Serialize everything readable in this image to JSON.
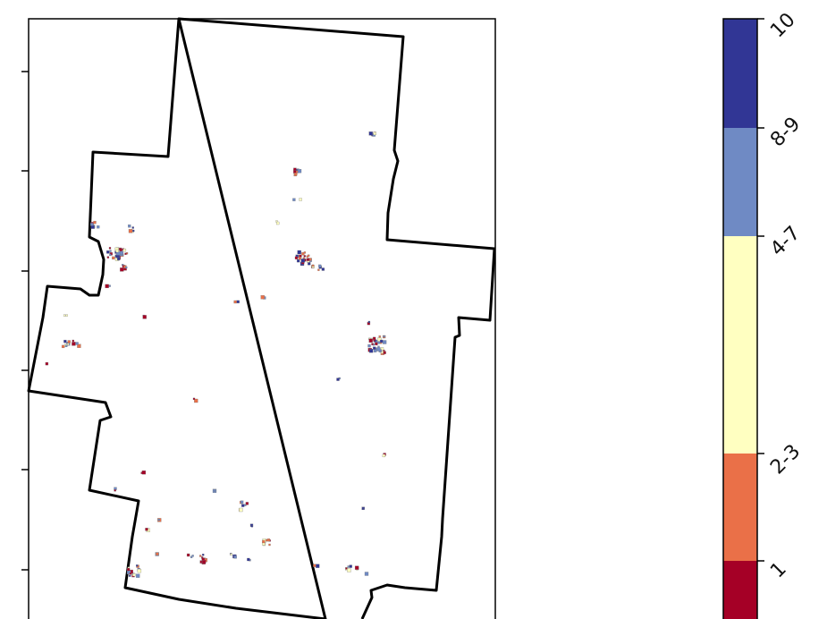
{
  "map": {
    "colors": {
      "class_1": "#a50026",
      "class_2_3": "#ea7048",
      "class_4_7": "#ffffc1",
      "class_8_9": "#6f8ac4",
      "class_10": "#313695",
      "boundary": "#000000",
      "frame": "#000000"
    },
    "left_axis_tick_count": 6,
    "top_axis_ticks_visible": false
  },
  "colorbar": {
    "orientation": "vertical",
    "classes": [
      {
        "label": "10",
        "color": "#313695"
      },
      {
        "label": "8-9",
        "color": "#6f8ac4"
      },
      {
        "label": "4-7",
        "color": "#ffffc1"
      },
      {
        "label": "2-3",
        "color": "#ea7048"
      },
      {
        "label": "1",
        "color": "#a50026"
      }
    ]
  }
}
